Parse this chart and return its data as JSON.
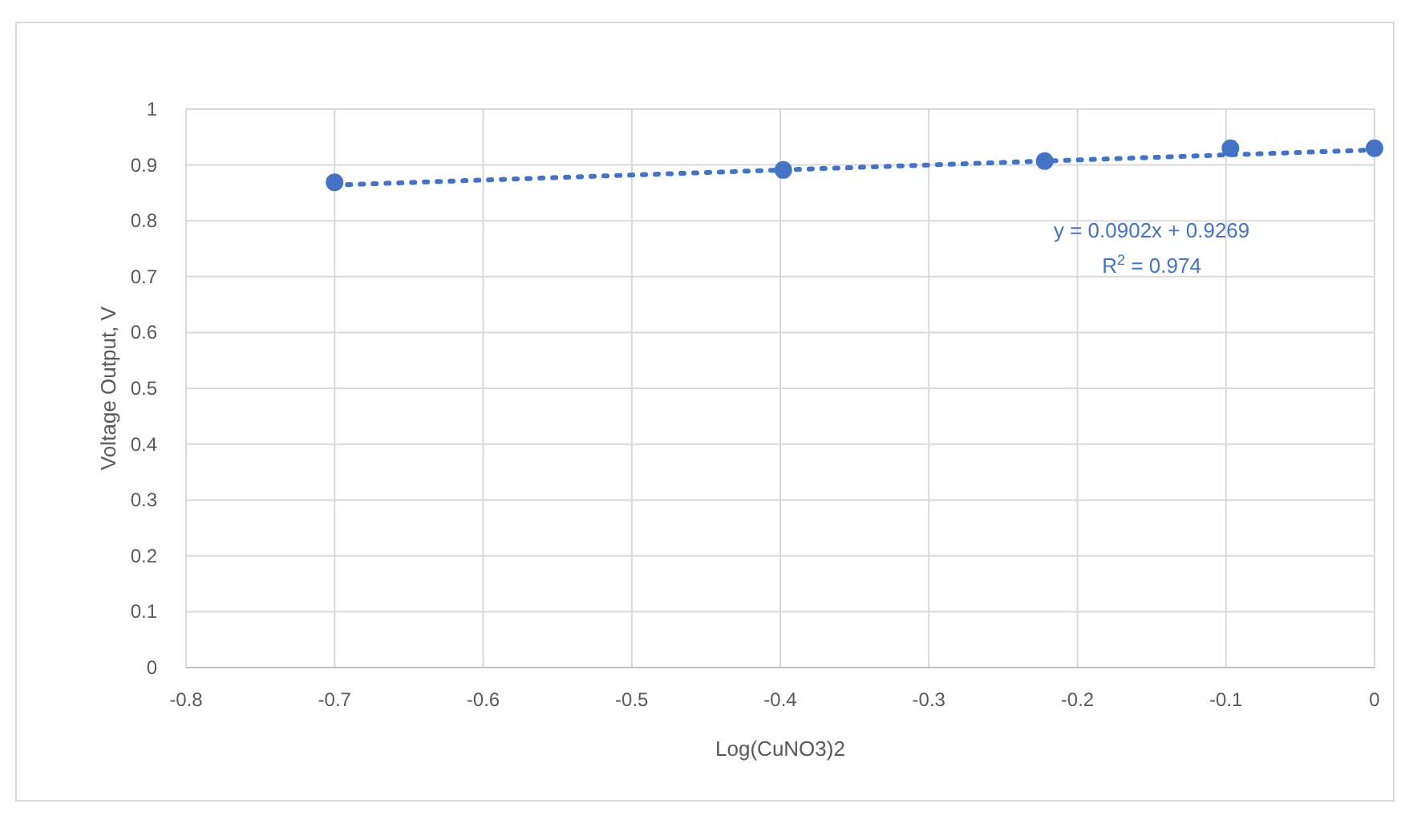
{
  "chart_data": {
    "type": "scatter",
    "xlabel": "Log(CuNO3)2",
    "ylabel": "Voltage Output, V",
    "series": [
      {
        "color": "#4472c4",
        "marker": "circle",
        "x": [
          -0.7,
          -0.398,
          -0.222,
          -0.097,
          0
        ],
        "values": [
          0.869,
          0.891,
          0.907,
          0.93,
          0.93
        ]
      },
      {
        "type": "line",
        "color": "#4472c4",
        "line_style": "dotted",
        "marker": "none",
        "x": [
          -0.7,
          0
        ],
        "values": [
          0.864,
          0.927
        ]
      }
    ],
    "annotations": [
      "y = 0.0902x + 0.9269",
      "R$^{2}$ = 0.974"
    ],
    "xlim": [
      -0.8,
      0
    ],
    "xticks": [
      -0.8,
      -0.7,
      -0.6,
      -0.5,
      -0.4,
      -0.3,
      -0.2,
      -0.1,
      0
    ],
    "ylim": [
      0,
      1
    ],
    "yticks": [
      0,
      0.1,
      0.2,
      0.3,
      0.4,
      0.5,
      0.6,
      0.7,
      0.8,
      0.9,
      1
    ],
    "grid": true
  }
}
